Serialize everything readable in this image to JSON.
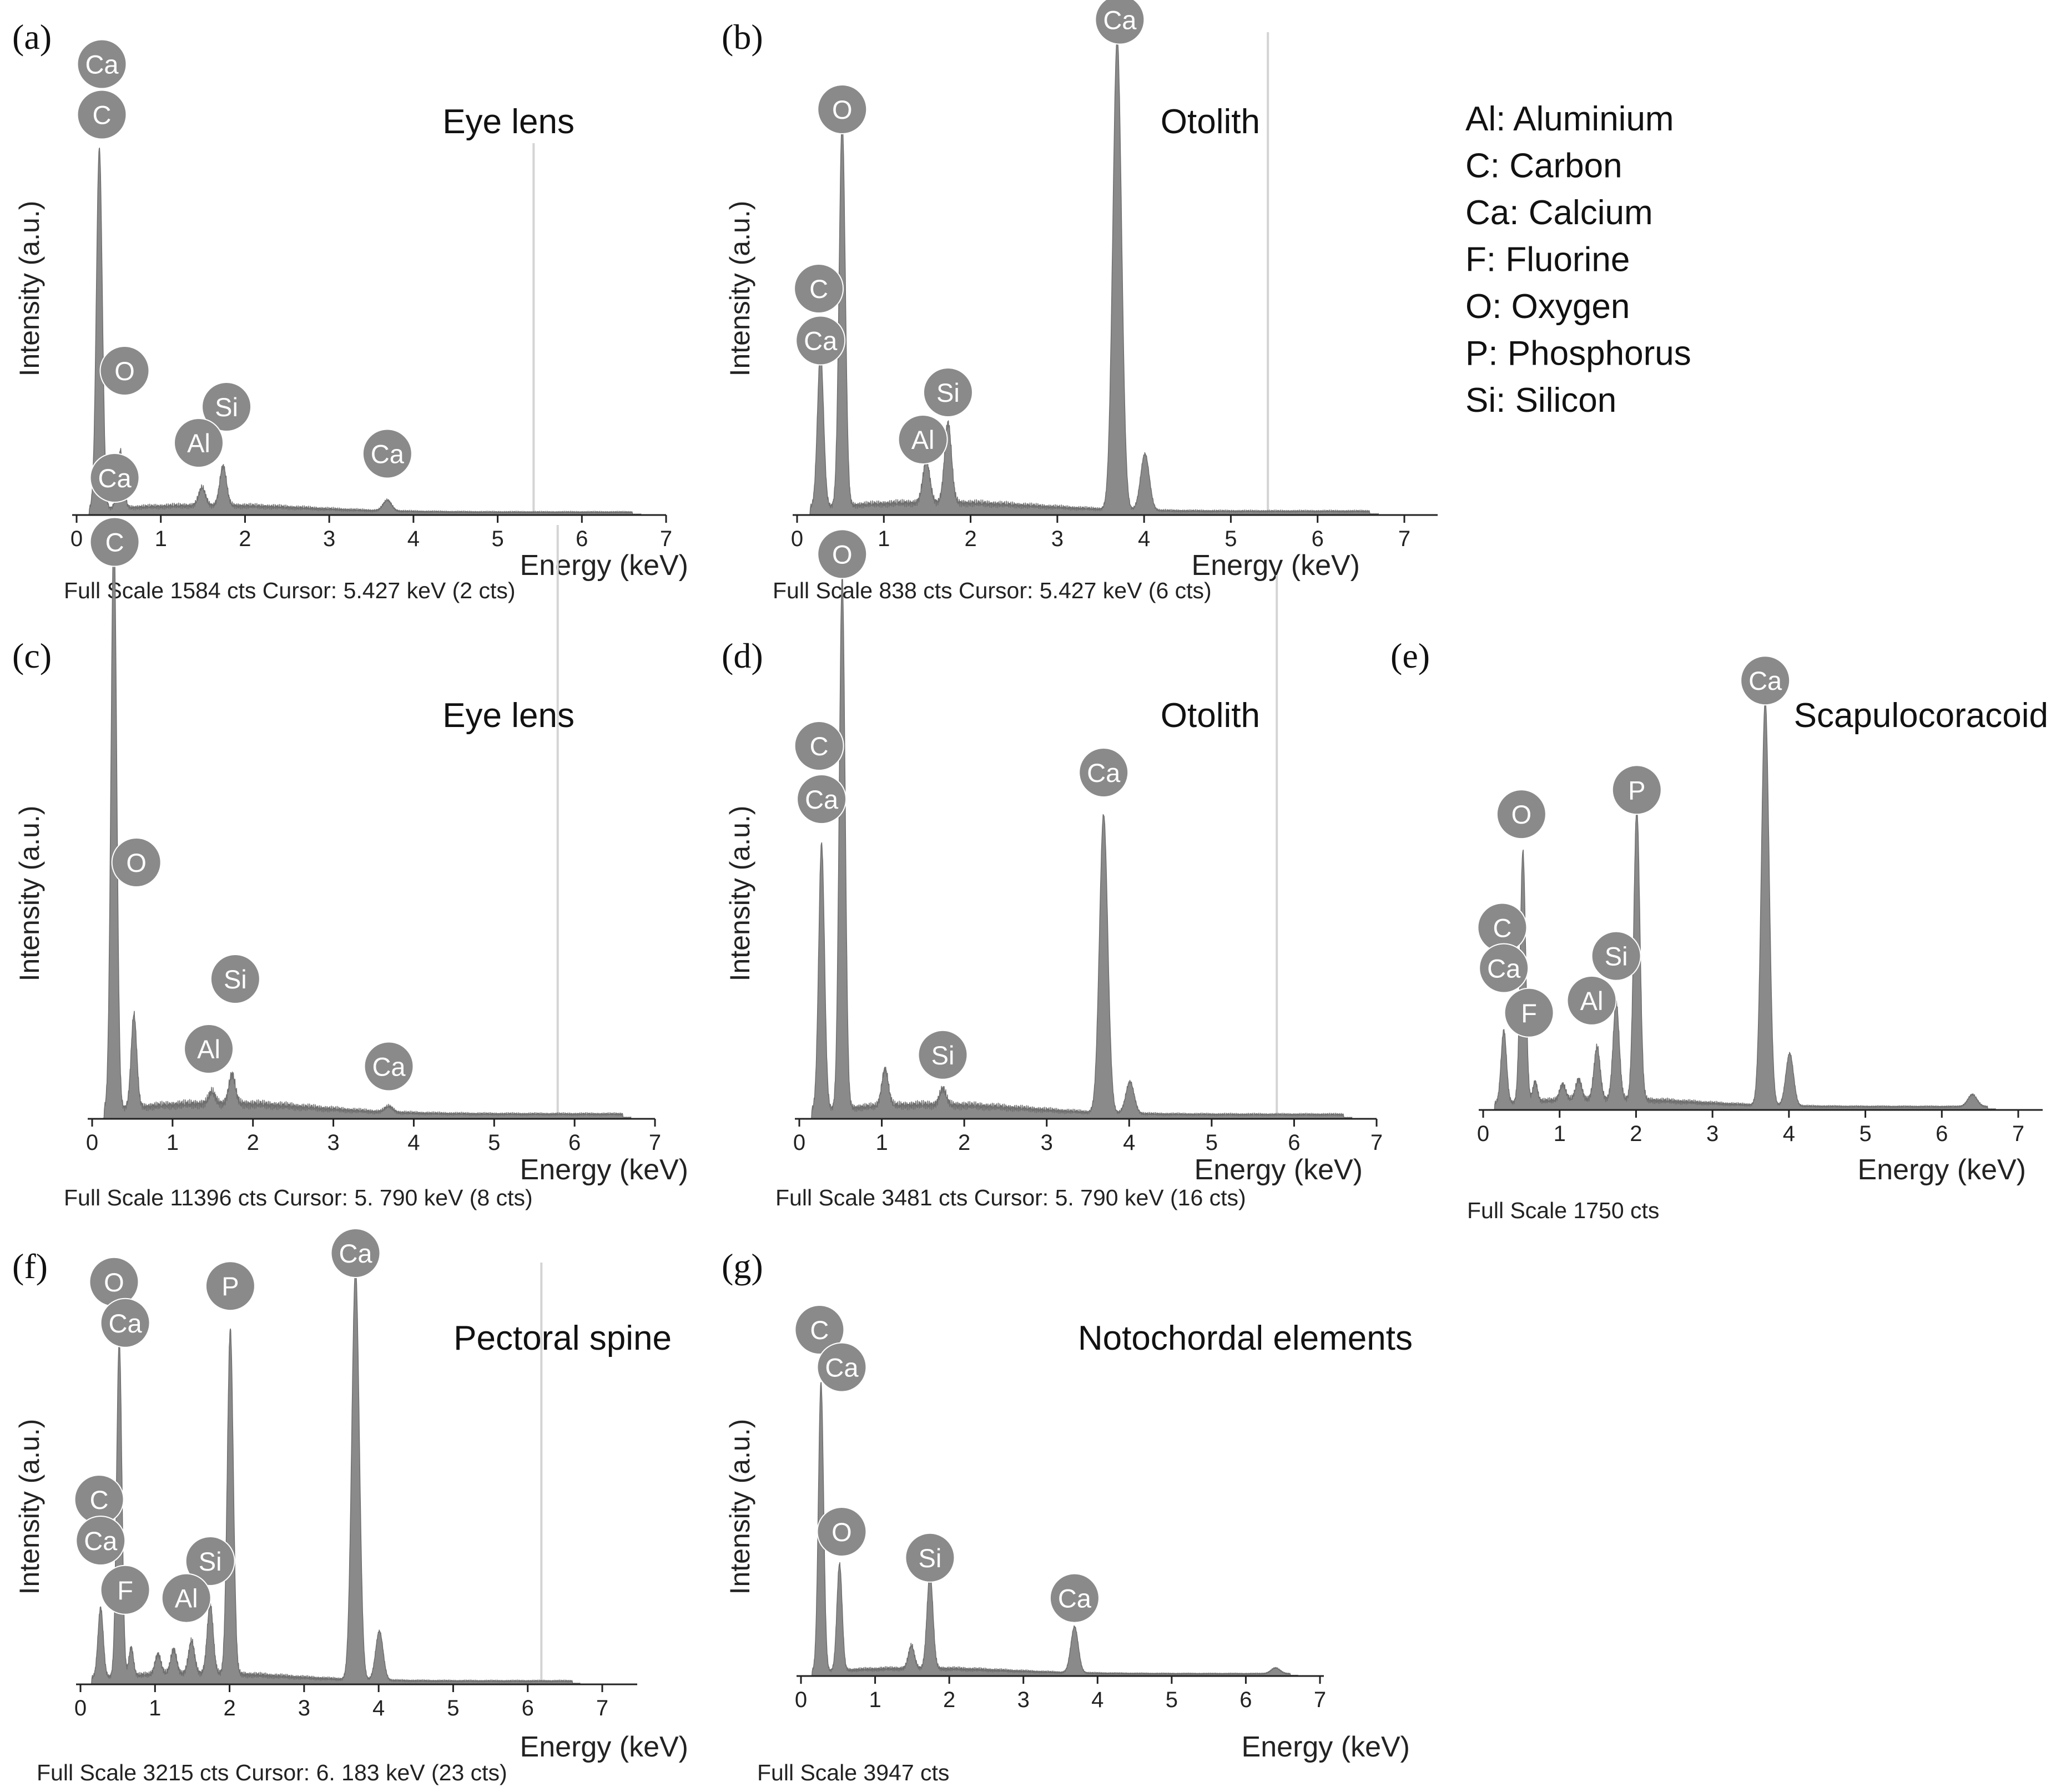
{
  "legend": [
    {
      "symbol": "Al",
      "name": "Aluminium",
      "text": "Al: Aluminium"
    },
    {
      "symbol": "C",
      "name": "Carbon",
      "text": "C: Carbon"
    },
    {
      "symbol": "Ca",
      "name": "Calcium",
      "text": "Ca: Calcium"
    },
    {
      "symbol": "F",
      "name": "Fluorine",
      "text": "F: Fluorine"
    },
    {
      "symbol": "O",
      "name": "Oxygen",
      "text": "O: Oxygen"
    },
    {
      "symbol": "P",
      "name": "Phosphorus",
      "text": "P: Phosphorus"
    },
    {
      "symbol": "Si",
      "name": "Silicon",
      "text": "Si: Silicon"
    }
  ],
  "colors": {
    "spectrum": "#8a8a8a",
    "badge": "#8a8a8a",
    "badge_text": "#ffffff",
    "cursor": "#d4d4d4",
    "axis": "#222222"
  },
  "chart_data": [
    {
      "panel": "(a)",
      "type": "area",
      "title": "Eye lens",
      "xlabel": "Energy (keV)",
      "ylabel": "Intensity (a.u.)",
      "xlim": [
        0,
        7
      ],
      "x_ticks": [
        0,
        1,
        2,
        3,
        4,
        5,
        6,
        7
      ],
      "full_scale": "Full Scale 1584 cts Cursor: 5.427 keV (2 cts)",
      "cursor_keV": 5.427,
      "peaks": [
        {
          "energy": 0.27,
          "rel": 1.0,
          "width": 0.035
        },
        {
          "energy": 0.52,
          "rel": 0.16,
          "width": 0.035
        },
        {
          "energy": 1.49,
          "rel": 0.05,
          "width": 0.04
        },
        {
          "energy": 1.74,
          "rel": 0.11,
          "width": 0.04
        },
        {
          "energy": 3.69,
          "rel": 0.03,
          "width": 0.05
        }
      ],
      "labels": [
        {
          "el": "Ca",
          "energy": 0.3,
          "rel": 1.25
        },
        {
          "el": "C",
          "energy": 0.3,
          "rel": 1.11
        },
        {
          "el": "O",
          "energy": 0.57,
          "rel": 0.4
        },
        {
          "el": "Si",
          "energy": 1.78,
          "rel": 0.3
        },
        {
          "el": "Al",
          "energy": 1.45,
          "rel": 0.2
        },
        {
          "el": "Ca",
          "energy": 3.69,
          "rel": 0.17
        }
      ]
    },
    {
      "panel": "(b)",
      "type": "area",
      "title": "Otolith",
      "xlabel": "Energy (keV)",
      "ylabel": "Intensity (a.u.)",
      "xlim": [
        0,
        7
      ],
      "x_ticks": [
        0,
        1,
        2,
        3,
        4,
        5,
        6,
        7
      ],
      "full_scale": "Full Scale 838 cts Cursor: 5.427 keV (6 cts)",
      "cursor_keV": 5.427,
      "peaks": [
        {
          "energy": 0.27,
          "rel": 0.33,
          "width": 0.035
        },
        {
          "energy": 0.52,
          "rel": 0.82,
          "width": 0.035
        },
        {
          "energy": 1.49,
          "rel": 0.09,
          "width": 0.04
        },
        {
          "energy": 1.74,
          "rel": 0.17,
          "width": 0.04
        },
        {
          "energy": 3.69,
          "rel": 1.0,
          "width": 0.05
        },
        {
          "energy": 4.01,
          "rel": 0.12,
          "width": 0.05
        }
      ],
      "labels": [
        {
          "el": "Ca",
          "energy": 3.72,
          "rel": 1.05
        },
        {
          "el": "O",
          "energy": 0.52,
          "rel": 0.86
        },
        {
          "el": "C",
          "energy": 0.25,
          "rel": 0.48
        },
        {
          "el": "Ca",
          "energy": 0.27,
          "rel": 0.37
        },
        {
          "el": "Si",
          "energy": 1.74,
          "rel": 0.26
        },
        {
          "el": "Al",
          "energy": 1.45,
          "rel": 0.16
        }
      ]
    },
    {
      "panel": "(c)",
      "type": "area",
      "title": "Eye lens",
      "xlabel": "Energy (keV)",
      "ylabel": "Intensity (a.u.)",
      "xlim": [
        0,
        7
      ],
      "x_ticks": [
        0,
        1,
        2,
        3,
        4,
        5,
        6,
        7
      ],
      "full_scale": "Full Scale 11396 cts Cursor: 5. 790 keV (8 cts)",
      "cursor_keV": 5.79,
      "peaks": [
        {
          "energy": 0.27,
          "rel": 1.0,
          "width": 0.035
        },
        {
          "energy": 0.52,
          "rel": 0.16,
          "width": 0.035
        },
        {
          "energy": 1.49,
          "rel": 0.02,
          "width": 0.04
        },
        {
          "energy": 1.74,
          "rel": 0.05,
          "width": 0.04
        },
        {
          "energy": 3.69,
          "rel": 0.01,
          "width": 0.05
        }
      ],
      "labels": [
        {
          "el": "Ca",
          "energy": 0.28,
          "rel": 1.1
        },
        {
          "el": "C",
          "energy": 0.28,
          "rel": 0.99
        },
        {
          "el": "O",
          "energy": 0.55,
          "rel": 0.44
        },
        {
          "el": "Si",
          "energy": 1.78,
          "rel": 0.24
        },
        {
          "el": "Al",
          "energy": 1.45,
          "rel": 0.12
        },
        {
          "el": "Ca",
          "energy": 3.69,
          "rel": 0.09
        }
      ]
    },
    {
      "panel": "(d)",
      "type": "area",
      "title": "Otolith",
      "xlabel": "Energy (keV)",
      "ylabel": "Intensity (a.u.)",
      "xlim": [
        0,
        7
      ],
      "x_ticks": [
        0,
        1,
        2,
        3,
        4,
        5,
        6,
        7
      ],
      "full_scale": "Full Scale 3481 cts Cursor: 5. 790 keV (16 cts)",
      "cursor_keV": 5.79,
      "peaks": [
        {
          "energy": 0.27,
          "rel": 0.5,
          "width": 0.035
        },
        {
          "energy": 0.52,
          "rel": 1.0,
          "width": 0.035
        },
        {
          "energy": 1.04,
          "rel": 0.07,
          "width": 0.04
        },
        {
          "energy": 1.74,
          "rel": 0.03,
          "width": 0.04
        },
        {
          "energy": 3.69,
          "rel": 0.56,
          "width": 0.05
        },
        {
          "energy": 4.01,
          "rel": 0.06,
          "width": 0.05
        }
      ],
      "labels": [
        {
          "el": "O",
          "energy": 0.52,
          "rel": 1.06
        },
        {
          "el": "C",
          "energy": 0.24,
          "rel": 0.7
        },
        {
          "el": "Ca",
          "energy": 0.27,
          "rel": 0.6
        },
        {
          "el": "Ca",
          "energy": 3.69,
          "rel": 0.65
        },
        {
          "el": "Si",
          "energy": 1.74,
          "rel": 0.12
        }
      ]
    },
    {
      "panel": "(e)",
      "type": "area",
      "title": "Scapulocoracoid",
      "xlabel": "Energy (keV)",
      "ylabel": "",
      "xlim": [
        0,
        7
      ],
      "x_ticks": [
        0,
        1,
        2,
        3,
        4,
        5,
        6,
        7
      ],
      "full_scale": "Full Scale 1750 cts",
      "cursor_keV": null,
      "peaks": [
        {
          "energy": 0.27,
          "rel": 0.18,
          "width": 0.035
        },
        {
          "energy": 0.52,
          "rel": 0.62,
          "width": 0.035
        },
        {
          "energy": 0.68,
          "rel": 0.05,
          "width": 0.03
        },
        {
          "energy": 1.04,
          "rel": 0.04,
          "width": 0.04
        },
        {
          "energy": 1.25,
          "rel": 0.05,
          "width": 0.04
        },
        {
          "energy": 1.49,
          "rel": 0.13,
          "width": 0.04
        },
        {
          "energy": 1.74,
          "rel": 0.24,
          "width": 0.04
        },
        {
          "energy": 2.01,
          "rel": 0.72,
          "width": 0.04
        },
        {
          "energy": 3.69,
          "rel": 1.0,
          "width": 0.05
        },
        {
          "energy": 4.01,
          "rel": 0.13,
          "width": 0.05
        },
        {
          "energy": 6.4,
          "rel": 0.03,
          "width": 0.06
        }
      ],
      "labels": [
        {
          "el": "Ca",
          "energy": 3.69,
          "rel": 1.06
        },
        {
          "el": "P",
          "energy": 2.01,
          "rel": 0.79
        },
        {
          "el": "O",
          "energy": 0.5,
          "rel": 0.73
        },
        {
          "el": "C",
          "energy": 0.25,
          "rel": 0.45
        },
        {
          "el": "Ca",
          "energy": 0.27,
          "rel": 0.35
        },
        {
          "el": "F",
          "energy": 0.6,
          "rel": 0.24
        },
        {
          "el": "Si",
          "energy": 1.74,
          "rel": 0.38
        },
        {
          "el": "Al",
          "energy": 1.42,
          "rel": 0.27
        }
      ]
    },
    {
      "panel": "(f)",
      "type": "area",
      "title": "Pectoral spine",
      "xlabel": "Energy (keV)",
      "ylabel": "Intensity (a.u.)",
      "xlim": [
        0,
        7
      ],
      "x_ticks": [
        0,
        1,
        2,
        3,
        4,
        5,
        6,
        7
      ],
      "full_scale": "Full Scale 3215 cts Cursor: 6. 183 keV (23 cts)",
      "cursor_keV": 6.183,
      "peaks": [
        {
          "energy": 0.27,
          "rel": 0.17,
          "width": 0.035
        },
        {
          "energy": 0.52,
          "rel": 0.82,
          "width": 0.035
        },
        {
          "energy": 0.68,
          "rel": 0.07,
          "width": 0.03
        },
        {
          "energy": 1.04,
          "rel": 0.05,
          "width": 0.04
        },
        {
          "energy": 1.25,
          "rel": 0.06,
          "width": 0.04
        },
        {
          "energy": 1.49,
          "rel": 0.08,
          "width": 0.04
        },
        {
          "energy": 1.74,
          "rel": 0.17,
          "width": 0.04
        },
        {
          "energy": 2.01,
          "rel": 0.84,
          "width": 0.04
        },
        {
          "energy": 3.69,
          "rel": 1.0,
          "width": 0.05
        },
        {
          "energy": 4.01,
          "rel": 0.12,
          "width": 0.05
        }
      ],
      "labels": [
        {
          "el": "Ca",
          "energy": 3.69,
          "rel": 1.05
        },
        {
          "el": "O",
          "energy": 0.45,
          "rel": 0.98
        },
        {
          "el": "P",
          "energy": 2.01,
          "rel": 0.97
        },
        {
          "el": "Ca",
          "energy": 0.6,
          "rel": 0.88
        },
        {
          "el": "C",
          "energy": 0.25,
          "rel": 0.45
        },
        {
          "el": "Ca",
          "energy": 0.27,
          "rel": 0.35
        },
        {
          "el": "Si",
          "energy": 1.74,
          "rel": 0.3
        },
        {
          "el": "F",
          "energy": 0.6,
          "rel": 0.23
        },
        {
          "el": "Al",
          "energy": 1.42,
          "rel": 0.21
        }
      ]
    },
    {
      "panel": "(g)",
      "type": "area",
      "title": "Notochordal elements",
      "xlabel": "Energy (keV)",
      "ylabel": "Intensity (a.u.)",
      "xlim": [
        0,
        7
      ],
      "x_ticks": [
        0,
        1,
        2,
        3,
        4,
        5,
        6,
        7
      ],
      "full_scale": "Full Scale 3947 cts",
      "cursor_keV": null,
      "peaks": [
        {
          "energy": 0.27,
          "rel": 1.0,
          "width": 0.035
        },
        {
          "energy": 0.52,
          "rel": 0.37,
          "width": 0.035
        },
        {
          "energy": 1.49,
          "rel": 0.08,
          "width": 0.04
        },
        {
          "energy": 1.74,
          "rel": 0.33,
          "width": 0.04
        },
        {
          "energy": 3.69,
          "rel": 0.16,
          "width": 0.05
        },
        {
          "energy": 6.4,
          "rel": 0.02,
          "width": 0.06
        }
      ],
      "labels": [
        {
          "el": "C",
          "energy": 0.25,
          "rel": 1.2
        },
        {
          "el": "Ca",
          "energy": 0.55,
          "rel": 1.07
        },
        {
          "el": "O",
          "energy": 0.55,
          "rel": 0.5
        },
        {
          "el": "Si",
          "energy": 1.74,
          "rel": 0.41
        },
        {
          "el": "Ca",
          "energy": 3.69,
          "rel": 0.27
        }
      ]
    }
  ]
}
